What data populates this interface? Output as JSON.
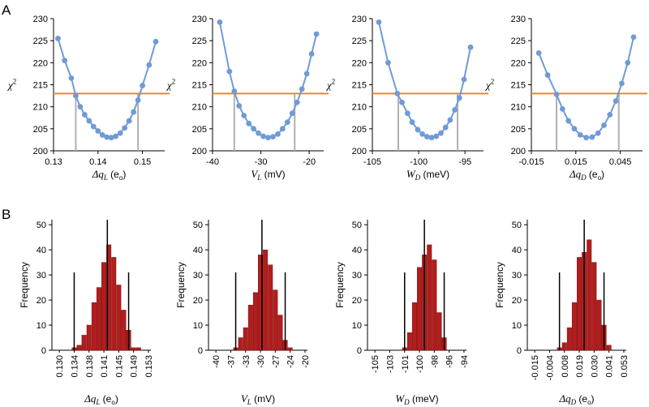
{
  "panels": {
    "A": "A",
    "B": "B"
  },
  "colors": {
    "curve": "#6f9bd6",
    "threshold": "#e08a3c",
    "ci": "#b0b0b0",
    "bar": "#b31d1d",
    "bar_edge": "#7a0f0f",
    "vline": "#000000"
  },
  "chart_data": [
    {
      "type": "line",
      "panel": "A",
      "ylabel": "χ2",
      "xlabel": {
        "symbol": "Δq",
        "sub": "L",
        "unit": "(e",
        "unit_sub": "o",
        "close": ")"
      },
      "xticks": [
        "0.13",
        "0.14",
        "0.15"
      ],
      "yticks": [
        "200",
        "205",
        "210",
        "215",
        "220",
        "225",
        "230"
      ],
      "xlim": [
        0.13,
        0.155
      ],
      "ylim": [
        200,
        230
      ],
      "threshold": 213,
      "ci_lines": [
        0.135,
        0.149
      ],
      "x": [
        0.131,
        0.1325,
        0.134,
        0.135,
        0.136,
        0.137,
        0.138,
        0.139,
        0.14,
        0.141,
        0.142,
        0.143,
        0.144,
        0.145,
        0.146,
        0.147,
        0.148,
        0.149,
        0.15,
        0.1515,
        0.153
      ],
      "y": [
        225.5,
        220.5,
        216.5,
        212.5,
        210.0,
        208.2,
        206.8,
        205.5,
        204.5,
        203.6,
        203.1,
        203.0,
        203.3,
        204.0,
        205.2,
        206.8,
        208.8,
        211.5,
        214.8,
        219.5,
        224.8
      ]
    },
    {
      "type": "line",
      "panel": "A",
      "ylabel": "χ2",
      "xlabel": {
        "symbol": "V",
        "sub": "L",
        "unit": "(mV)",
        "unit_sub": "",
        "close": ""
      },
      "xticks": [
        "-40",
        "-30",
        "-20"
      ],
      "yticks": [
        "200",
        "205",
        "210",
        "215",
        "220",
        "225",
        "230"
      ],
      "xlim": [
        -40,
        -17
      ],
      "ylim": [
        200,
        230
      ],
      "threshold": 213,
      "ci_lines": [
        -35.5,
        -23
      ],
      "x": [
        -38.5,
        -36.5,
        -35.5,
        -34.5,
        -33.5,
        -32.5,
        -31.5,
        -30.5,
        -29.5,
        -28.5,
        -27.5,
        -26.5,
        -25.5,
        -24.5,
        -23.5,
        -22.5,
        -21.5,
        -20.5,
        -19.5,
        -18.5
      ],
      "y": [
        229.2,
        218.0,
        213.5,
        210.2,
        208.0,
        206.2,
        205.0,
        204.0,
        203.3,
        203.0,
        203.2,
        203.8,
        205.0,
        206.5,
        208.5,
        211.0,
        214.0,
        217.5,
        222.0,
        226.5
      ]
    },
    {
      "type": "line",
      "panel": "A",
      "ylabel": "χ2",
      "xlabel": {
        "symbol": "W",
        "sub": "D",
        "unit": "(meV)",
        "unit_sub": "",
        "close": ""
      },
      "xticks": [
        "-105",
        "-100",
        "-95"
      ],
      "yticks": [
        "200",
        "205",
        "210",
        "215",
        "220",
        "225",
        "230"
      ],
      "xlim": [
        -105,
        -93
      ],
      "ylim": [
        200,
        230
      ],
      "threshold": 213,
      "ci_lines": [
        -102.2,
        -95.8
      ],
      "x": [
        -104.3,
        -103.3,
        -102.3,
        -101.8,
        -101.2,
        -100.7,
        -100.1,
        -99.6,
        -99.1,
        -98.6,
        -98.1,
        -97.6,
        -97.1,
        -96.6,
        -96.1,
        -95.6,
        -95.1,
        -94.4
      ],
      "y": [
        229.2,
        220.0,
        213.0,
        211.0,
        208.5,
        206.5,
        204.8,
        203.8,
        203.2,
        203.0,
        203.3,
        204.0,
        205.3,
        207.0,
        209.3,
        212.0,
        216.2,
        223.5
      ]
    },
    {
      "type": "line",
      "panel": "A",
      "ylabel": "χ2",
      "xlabel": {
        "symbol": "Δq",
        "sub": "D",
        "unit": "(e",
        "unit_sub": "o",
        "close": ")"
      },
      "xticks": [
        "-0.015",
        "0.015",
        "0.045"
      ],
      "yticks": [
        "200",
        "205",
        "210",
        "215",
        "220",
        "225",
        "230"
      ],
      "xlim": [
        -0.015,
        0.06
      ],
      "ylim": [
        200,
        230
      ],
      "threshold": 213,
      "ci_lines": [
        0.002,
        0.044
      ],
      "x": [
        -0.01,
        -0.004,
        0.002,
        0.006,
        0.01,
        0.014,
        0.018,
        0.022,
        0.026,
        0.03,
        0.034,
        0.038,
        0.042,
        0.046,
        0.05,
        0.054
      ],
      "y": [
        222.2,
        217.2,
        212.8,
        209.5,
        206.8,
        205.0,
        203.6,
        203.0,
        203.1,
        204.0,
        205.8,
        208.2,
        211.3,
        215.3,
        220.0,
        225.8
      ]
    },
    {
      "type": "bar",
      "panel": "B",
      "ylabel": "Frequency",
      "xlabel": {
        "symbol": "Δq",
        "sub": "L",
        "unit": "(e",
        "unit_sub": "o",
        "close": ")"
      },
      "yticks": [
        "0",
        "10",
        "20",
        "30",
        "40",
        "50"
      ],
      "ylim": [
        0,
        52
      ],
      "tick_labels": [
        "0.130",
        "0.134",
        "0.138",
        "0.141",
        "0.145",
        "0.149",
        "0.153"
      ],
      "values": [
        0,
        0,
        0,
        0,
        1,
        2,
        6,
        10,
        19,
        25,
        35,
        42,
        37,
        26,
        16,
        8,
        1,
        1,
        0,
        0
      ],
      "vlines": [
        {
          "bin": 4.5,
          "height": 31
        },
        {
          "bin": 11.2,
          "height": 52
        },
        {
          "bin": 15.5,
          "height": 31
        }
      ]
    },
    {
      "type": "bar",
      "panel": "B",
      "ylabel": "Frequency",
      "xlabel": {
        "symbol": "V",
        "sub": "L",
        "unit": "(mV)",
        "unit_sub": "",
        "close": ""
      },
      "yticks": [
        "0",
        "10",
        "20",
        "30",
        "40",
        "50"
      ],
      "ylim": [
        0,
        52
      ],
      "tick_labels": [
        "-40",
        "-37",
        "-33",
        "-30",
        "-27",
        "-24",
        "-20"
      ],
      "values": [
        0,
        0,
        0,
        0,
        0,
        1,
        5,
        9,
        18,
        23,
        38,
        40,
        34,
        24,
        14,
        4,
        1,
        0,
        0,
        0
      ],
      "vlines": [
        {
          "bin": 5.5,
          "height": 31
        },
        {
          "bin": 10.8,
          "height": 52
        },
        {
          "bin": 15.5,
          "height": 31
        }
      ]
    },
    {
      "type": "bar",
      "panel": "B",
      "ylabel": "Frequency",
      "xlabel": {
        "symbol": "W",
        "sub": "D",
        "unit": "(meV)",
        "unit_sub": "",
        "close": ""
      },
      "yticks": [
        "0",
        "10",
        "20",
        "30",
        "40",
        "50"
      ],
      "ylim": [
        0,
        52
      ],
      "tick_labels": [
        "-105",
        "-103",
        "-101",
        "-100",
        "-98",
        "-96",
        "-94"
      ],
      "values": [
        0,
        0,
        0,
        0,
        0,
        0,
        0,
        1,
        7,
        19,
        33,
        38,
        42,
        36,
        15,
        5,
        0,
        0,
        0,
        0
      ],
      "vlines": [
        {
          "bin": 7.5,
          "height": 31
        },
        {
          "bin": 11.5,
          "height": 52
        },
        {
          "bin": 15.5,
          "height": 31
        }
      ]
    },
    {
      "type": "bar",
      "panel": "B",
      "ylabel": "Frequency",
      "xlabel": {
        "symbol": "Δq",
        "sub": "D",
        "unit": "(e",
        "unit_sub": "o",
        "close": ")"
      },
      "yticks": [
        "0",
        "10",
        "20",
        "30",
        "40",
        "50"
      ],
      "ylim": [
        0,
        52
      ],
      "tick_labels": [
        "-0.015",
        "-0.004",
        "0.008",
        "0.019",
        "0.030",
        "0.041",
        "0.053"
      ],
      "values": [
        0,
        0,
        0,
        0,
        0,
        0,
        1,
        3,
        9,
        19,
        37,
        39,
        44,
        35,
        20,
        10,
        2,
        0,
        0,
        0
      ],
      "vlines": [
        {
          "bin": 6.5,
          "height": 31
        },
        {
          "bin": 11.5,
          "height": 52
        },
        {
          "bin": 15.5,
          "height": 31
        }
      ]
    }
  ]
}
